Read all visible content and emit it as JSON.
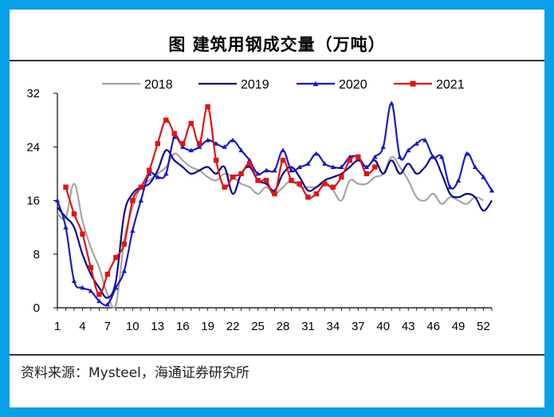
{
  "title": "图 建筑用钢成交量（万吨）",
  "source": "资料来源：Mysteel，海通证券研究所",
  "colors": {
    "2018": "#a6a6a6",
    "2019": "#0a0a8a",
    "2020": "#1a1ac8",
    "2021": "#e01414"
  },
  "chart_data": {
    "type": "line",
    "title": "图 建筑用钢成交量（万吨）",
    "xlabel": "",
    "ylabel": "",
    "ylim": [
      0,
      32
    ],
    "yticks": [
      0,
      8,
      16,
      24,
      32
    ],
    "xlim": [
      1,
      53
    ],
    "xticks": [
      1,
      4,
      7,
      10,
      13,
      16,
      19,
      22,
      25,
      28,
      31,
      34,
      37,
      40,
      43,
      46,
      49,
      52
    ],
    "grid": false,
    "legend": "top",
    "series": [
      {
        "name": "2018",
        "x": [
          1,
          2,
          3,
          4,
          5,
          6,
          7,
          8,
          9,
          10,
          11,
          12,
          13,
          14,
          15,
          16,
          17,
          18,
          19,
          20,
          21,
          22,
          23,
          24,
          25,
          26,
          27,
          28,
          29,
          30,
          31,
          32,
          33,
          34,
          35,
          36,
          37,
          38,
          39,
          40,
          41,
          42,
          43,
          44,
          45,
          46,
          47,
          48,
          49,
          50,
          51,
          52
        ],
        "values": [
          14,
          13.5,
          18.5,
          13,
          9,
          6,
          2,
          0.5,
          10,
          15,
          18,
          19,
          20,
          21,
          23,
          22,
          21,
          20.5,
          19.5,
          19,
          20,
          19.5,
          18.5,
          18,
          17,
          18,
          17,
          18,
          19,
          18,
          18,
          18,
          18.5,
          17.5,
          16,
          19,
          18.5,
          18.5,
          19.5,
          20,
          22.5,
          21,
          19,
          16.5,
          16,
          17,
          15.5,
          16.5,
          16,
          15.5,
          16.5,
          16
        ]
      },
      {
        "name": "2019",
        "x": [
          1,
          2,
          3,
          4,
          5,
          6,
          7,
          8,
          9,
          10,
          11,
          12,
          13,
          14,
          15,
          16,
          17,
          18,
          19,
          20,
          21,
          22,
          23,
          24,
          25,
          26,
          27,
          28,
          29,
          30,
          31,
          32,
          33,
          34,
          35,
          36,
          37,
          38,
          39,
          40,
          41,
          42,
          43,
          44,
          45,
          46,
          47,
          48,
          49,
          50,
          51,
          52,
          53
        ],
        "values": [
          15,
          13.5,
          12,
          8,
          5,
          3,
          1.5,
          4,
          14,
          17,
          18,
          18.5,
          20.5,
          23.5,
          22,
          21,
          20,
          20.5,
          21,
          20,
          21,
          17,
          20,
          21,
          19,
          18.5,
          17.5,
          20,
          21,
          19.5,
          17.5,
          18,
          19,
          19.5,
          20,
          21,
          22,
          21,
          22,
          20,
          22,
          20,
          21.5,
          20,
          21,
          22.5,
          20,
          17,
          16.5,
          17,
          16.5,
          14.5,
          16
        ]
      },
      {
        "name": "2020",
        "x": [
          1,
          2,
          3,
          4,
          5,
          6,
          7,
          8,
          9,
          10,
          11,
          12,
          13,
          14,
          15,
          16,
          17,
          18,
          19,
          20,
          21,
          22,
          23,
          24,
          25,
          26,
          27,
          28,
          29,
          30,
          31,
          32,
          33,
          34,
          35,
          36,
          37,
          38,
          39,
          40,
          41,
          42,
          43,
          44,
          45,
          46,
          47,
          48,
          49,
          50,
          51,
          52,
          53
        ],
        "values": [
          16,
          12,
          4,
          3,
          2.5,
          1,
          0.5,
          3,
          5.5,
          11.5,
          16,
          20,
          19.5,
          20,
          25.5,
          24,
          23.5,
          24,
          25,
          24.5,
          24,
          25,
          23.5,
          22,
          20,
          20.5,
          20.5,
          23.5,
          20.5,
          21,
          21.5,
          23,
          21.5,
          21,
          21,
          22.5,
          22.5,
          21,
          22.5,
          24,
          30.5,
          22.5,
          23.5,
          24.5,
          25,
          22.5,
          22.5,
          18,
          19,
          23,
          21,
          19.5,
          17.5
        ]
      },
      {
        "name": "2021",
        "x": [
          2,
          3,
          4,
          5,
          6,
          7,
          8,
          9,
          10,
          11,
          12,
          13,
          14,
          15,
          16,
          17,
          18,
          19,
          20,
          21,
          22,
          23,
          24,
          25,
          26,
          27,
          28,
          29,
          30,
          31,
          32,
          33,
          34,
          35,
          36,
          37,
          38,
          39
        ],
        "values": [
          18,
          14,
          11,
          6,
          2,
          5,
          7.5,
          9.5,
          16,
          18,
          20.5,
          24.5,
          28,
          26,
          24.5,
          27.5,
          24.5,
          30,
          22,
          18,
          19.5,
          20,
          21.5,
          19,
          19,
          17,
          22,
          19,
          18.5,
          16.5,
          17,
          18.5,
          18,
          19.5,
          22,
          22.5,
          20,
          21
        ]
      }
    ]
  }
}
